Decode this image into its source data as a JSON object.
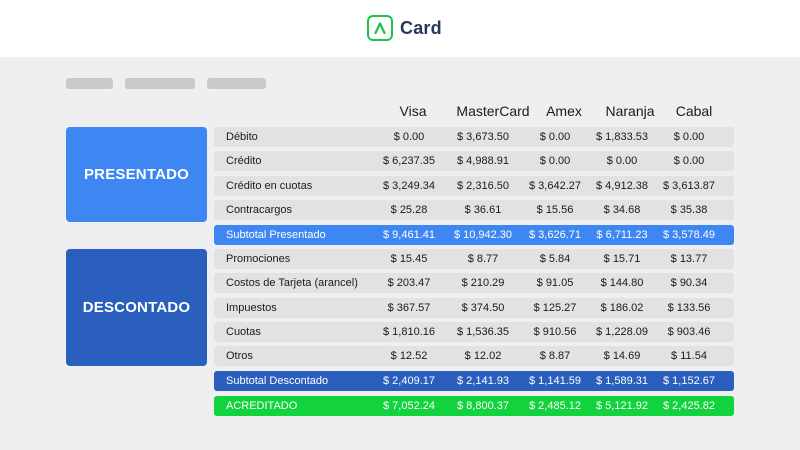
{
  "app": {
    "logo_text": "Card"
  },
  "columns": [
    "Visa",
    "MasterCard",
    "Amex",
    "Naranja",
    "Cabal"
  ],
  "sections": {
    "presentado_label": "PRESENTADO",
    "descontado_label": "DESCONTADO"
  },
  "presentado_rows": [
    {
      "label": "Débito",
      "values": [
        "$ 0.00",
        "$ 3,673.50",
        "$ 0.00",
        "$ 1,833.53",
        "$ 0.00"
      ]
    },
    {
      "label": "Crédito",
      "values": [
        "$ 6,237.35",
        "$ 4,988.91",
        "$ 0.00",
        "$ 0.00",
        "$ 0.00"
      ]
    },
    {
      "label": "Crédito en cuotas",
      "values": [
        "$ 3,249.34",
        "$ 2,316.50",
        "$ 3,642.27",
        "$ 4,912.38",
        "$ 3,613.87"
      ]
    },
    {
      "label": "Contracargos",
      "values": [
        "$ 25.28",
        "$ 36.61",
        "$ 15.56",
        "$ 34.68",
        "$ 35.38"
      ]
    }
  ],
  "subtotal_presentado": {
    "label": "Subtotal Presentado",
    "values": [
      "$ 9,461.41",
      "$ 10,942.30",
      "$ 3,626.71",
      "$ 6,711.23",
      "$ 3,578.49"
    ]
  },
  "descontado_rows": [
    {
      "label": "Promociones",
      "values": [
        "$ 15.45",
        "$ 8.77",
        "$ 5.84",
        "$ 15.71",
        "$ 13.77"
      ]
    },
    {
      "label": "Costos de Tarjeta (arancel)",
      "values": [
        "$ 203.47",
        "$ 210.29",
        "$ 91.05",
        "$ 144.80",
        "$ 90.34"
      ]
    },
    {
      "label": "Impuestos",
      "values": [
        "$ 367.57",
        "$ 374.50",
        "$ 125.27",
        "$ 186.02",
        "$ 133.56"
      ]
    },
    {
      "label": "Cuotas",
      "values": [
        "$ 1,810.16",
        "$ 1,536.35",
        "$ 910.56",
        "$ 1,228.09",
        "$ 903.46"
      ]
    },
    {
      "label": "Otros",
      "values": [
        "$ 12.52",
        "$ 12.02",
        "$ 8.87",
        "$ 14.69",
        "$ 11.54"
      ]
    }
  ],
  "subtotal_descontado": {
    "label": "Subtotal Descontado",
    "values": [
      "$ 2,409.17",
      "$ 2,141.93",
      "$ 1,141.59",
      "$ 1,589.31",
      "$ 1,152.67"
    ]
  },
  "acreditado": {
    "label": "ACREDITADO",
    "values": [
      "$ 7,052.24",
      "$ 8,800.37",
      "$ 2,485.12",
      "$ 5,121.92",
      "$ 2,425.82"
    ]
  },
  "colors": {
    "brand_green": "#1fc24a",
    "presentado_blue": "#3e86f2",
    "descontado_blue": "#2a5fbe",
    "acreditado_green": "#12d23e"
  },
  "icons": {
    "logo": "arrow-up-chevron-icon"
  }
}
